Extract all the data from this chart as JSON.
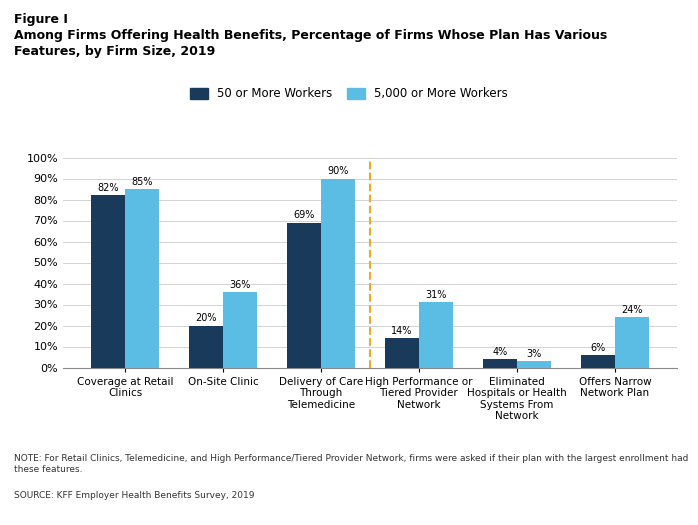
{
  "title_line1": "Figure I",
  "title_line2": "Among Firms Offering Health Benefits, Percentage of Firms Whose Plan Has Various",
  "title_line3": "Features, by Firm Size, 2019",
  "categories": [
    "Coverage at Retail\nClinics",
    "On-Site Clinic",
    "Delivery of Care\nThrough\nTelemedicine",
    "High Performance or\nTiered Provider\nNetwork",
    "Eliminated\nHospitals or Health\nSystems From\nNetwork",
    "Offers Narrow\nNetwork Plan"
  ],
  "series1_label": "50 or More Workers",
  "series2_label": "5,000 or More Workers",
  "series1_values": [
    82,
    20,
    69,
    14,
    4,
    6
  ],
  "series2_values": [
    85,
    36,
    90,
    31,
    3,
    24
  ],
  "series1_color": "#1a3a5c",
  "series2_color": "#5bbde4",
  "ylim": [
    0,
    100
  ],
  "yticks": [
    0,
    10,
    20,
    30,
    40,
    50,
    60,
    70,
    80,
    90,
    100
  ],
  "ytick_labels": [
    "0%",
    "10%",
    "20%",
    "30%",
    "40%",
    "50%",
    "60%",
    "70%",
    "80%",
    "90%",
    "100%"
  ],
  "dashed_line_color": "#f5a623",
  "note_text": "NOTE: For Retail Clinics, Telemedicine, and High Performance/Tiered Provider Network, firms were asked if their plan with the largest enrollment had\nthese features.",
  "source_text": "SOURCE: KFF Employer Health Benefits Survey, 2019",
  "background_color": "#ffffff"
}
